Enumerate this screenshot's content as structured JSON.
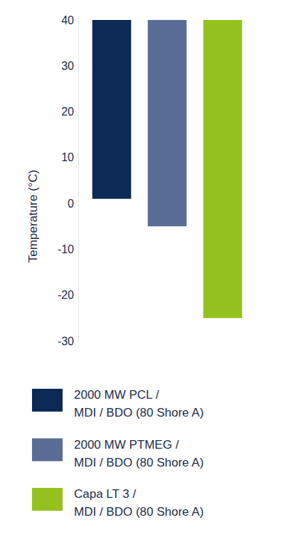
{
  "chart_data": {
    "type": "range_bar",
    "y_label": "Temperature (°C)",
    "series": [
      {
        "name": "2000 MW PCL / MDI / BDO (80 Shore A)",
        "color": "#0d2a56",
        "low": [
          1
        ],
        "values": [
          40
        ]
      },
      {
        "name": "2000 MW PTMEG / MDI / BDO (80 Shore A)",
        "color": "#5a6d96",
        "low": [
          -5
        ],
        "values": [
          40
        ]
      },
      {
        "name": "Capa LT 3 / MDI / BDO (80 Shore A)",
        "color": "#95c11f",
        "low": [
          -25
        ],
        "values": [
          40
        ]
      }
    ],
    "ylim": [
      -30,
      40
    ],
    "yticks": [
      -30,
      -20,
      -10,
      0,
      10,
      20,
      30,
      40
    ],
    "grid": false,
    "tick_labels": "y",
    "legend": "bottom"
  }
}
